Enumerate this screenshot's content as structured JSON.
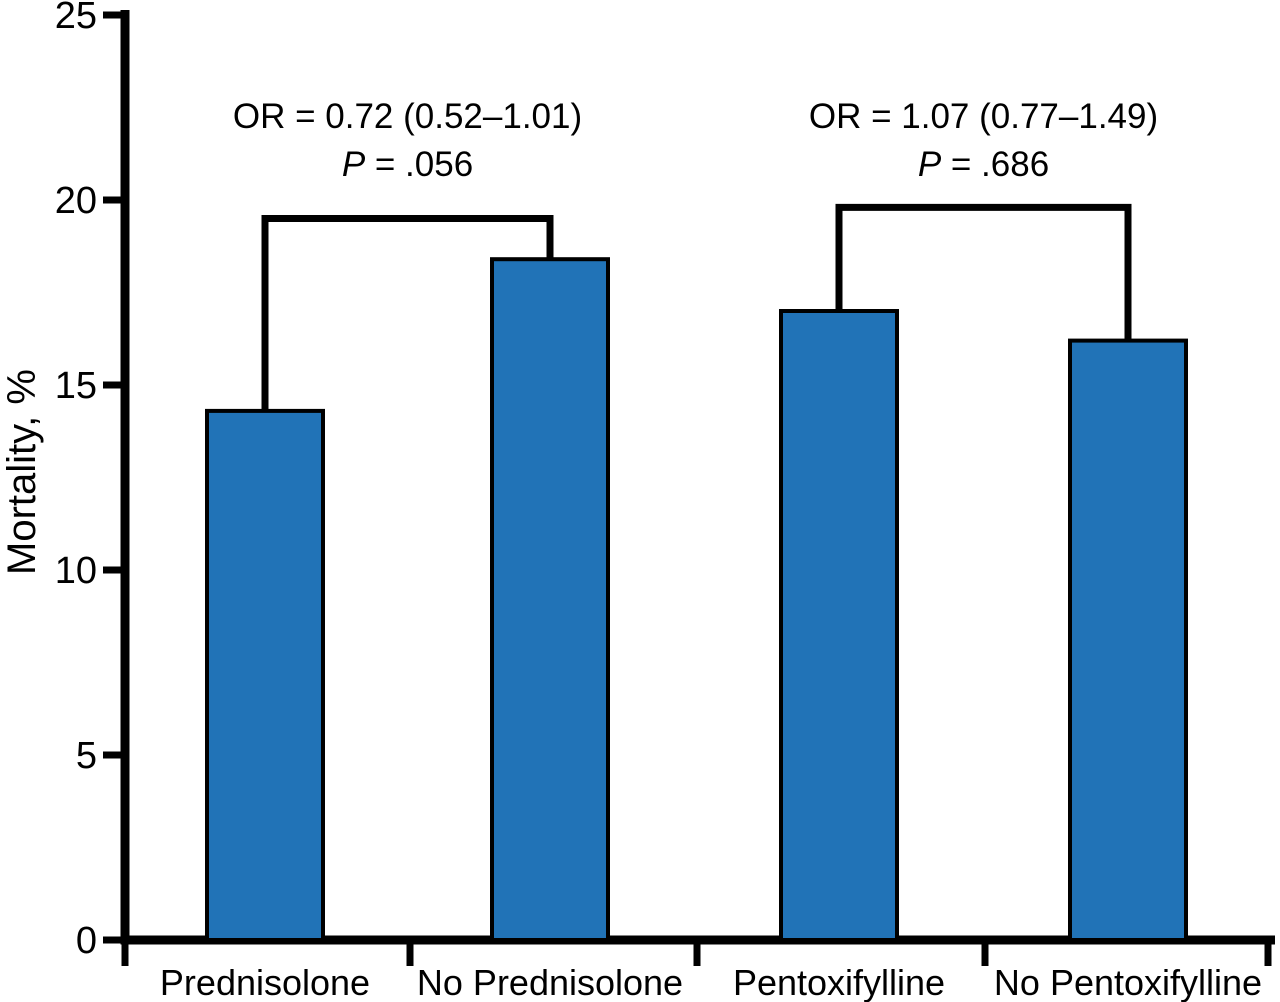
{
  "figure": {
    "background": "#ffffff"
  },
  "chart_data": {
    "type": "bar",
    "title": "",
    "ylabel": "Mortality, %",
    "xlabel": "",
    "ylim": [
      0,
      25
    ],
    "yticks": [
      0,
      5,
      10,
      15,
      20,
      25
    ],
    "grid": false,
    "categories": [
      "Prednisolone",
      "No Prednisolone",
      "Pentoxifylline",
      "No Pentoxifylline"
    ],
    "values": [
      14.3,
      18.4,
      17.0,
      16.2
    ],
    "bar_color": "#2173b7",
    "bar_border_color": "#000000",
    "axis_color": "#000000",
    "text_color": "#000000",
    "annotations": [
      {
        "or_text": "OR = 0.72 (0.52–1.01)",
        "p_italic": "P",
        "p_rest": " = .056",
        "pair": [
          0,
          1
        ],
        "bracket_top": 19.5
      },
      {
        "or_text": "OR = 1.07 (0.77–1.49)",
        "p_italic": "P",
        "p_rest": " = .686",
        "pair": [
          2,
          3
        ],
        "bracket_top": 19.8
      }
    ]
  }
}
